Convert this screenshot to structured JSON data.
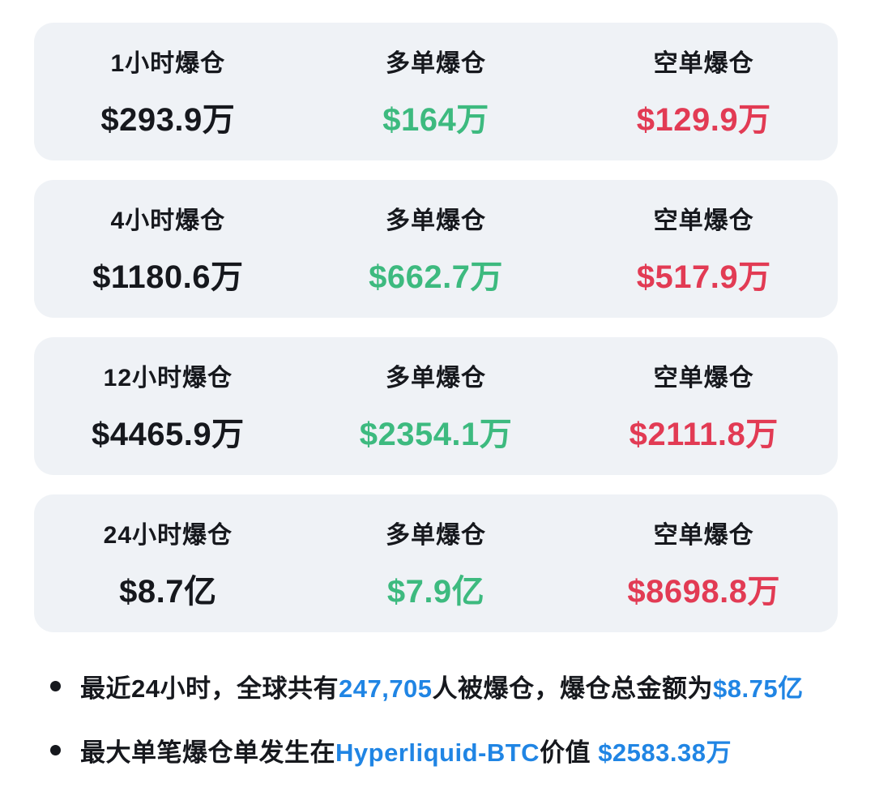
{
  "colors": {
    "long_green": "#3DBA7F",
    "short_red": "#E23B54",
    "link_blue": "#2085E4",
    "text_dark": "#16181D",
    "card_bg": "#EFF2F6"
  },
  "cards": [
    {
      "period_label": "1小时爆仓",
      "total_value": "$293.9万",
      "long_label": "多单爆仓",
      "long_value": "$164万",
      "short_label": "空单爆仓",
      "short_value": "$129.9万"
    },
    {
      "period_label": "4小时爆仓",
      "total_value": "$1180.6万",
      "long_label": "多单爆仓",
      "long_value": "$662.7万",
      "short_label": "空单爆仓",
      "short_value": "$517.9万"
    },
    {
      "period_label": "12小时爆仓",
      "total_value": "$4465.9万",
      "long_label": "多单爆仓",
      "long_value": "$2354.1万",
      "short_label": "空单爆仓",
      "short_value": "$2111.8万"
    },
    {
      "period_label": "24小时爆仓",
      "total_value": "$8.7亿",
      "long_label": "多单爆仓",
      "long_value": "$7.9亿",
      "short_label": "空单爆仓",
      "short_value": "$8698.8万"
    }
  ],
  "notes": [
    {
      "segments": [
        {
          "text": "最近24小时，全球共有"
        },
        {
          "text": "247,705",
          "highlight": true
        },
        {
          "text": "人被爆仓，爆仓总金额为"
        },
        {
          "text": "$8.75亿",
          "highlight": true
        }
      ]
    },
    {
      "segments": [
        {
          "text": "最大单笔爆仓单发生在"
        },
        {
          "text": "Hyperliquid-BTC",
          "highlight": true
        },
        {
          "text": "价值 "
        },
        {
          "text": "$2583.38万",
          "highlight": true
        }
      ]
    }
  ]
}
